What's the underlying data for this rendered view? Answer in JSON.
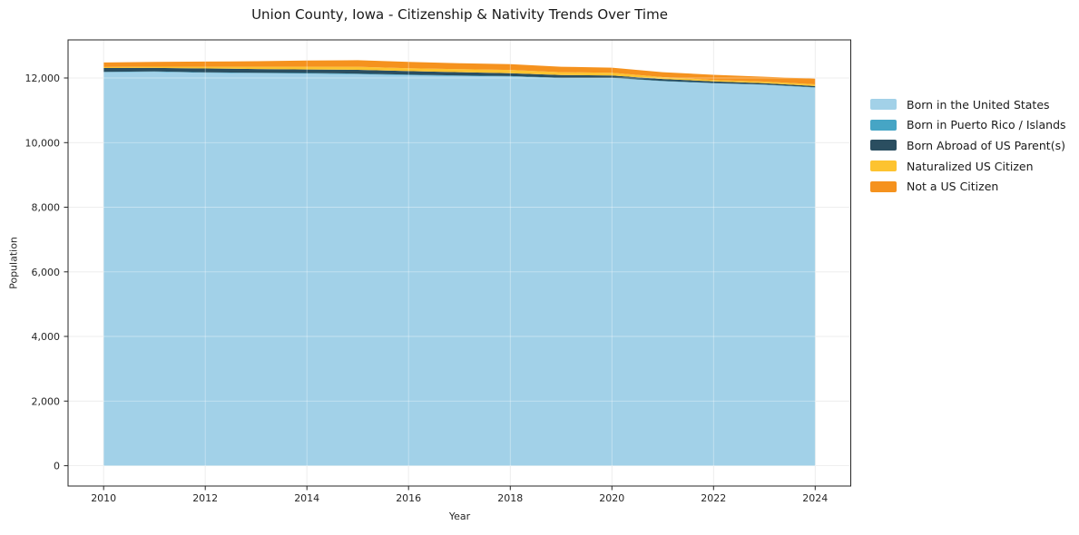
{
  "chart_data": {
    "type": "area",
    "stacked": true,
    "title": "Union County, Iowa - Citizenship & Nativity Trends Over Time",
    "xlabel": "Year",
    "ylabel": "Population",
    "x": [
      2010,
      2011,
      2012,
      2013,
      2014,
      2015,
      2016,
      2017,
      2018,
      2019,
      2020,
      2021,
      2022,
      2023,
      2024
    ],
    "series": [
      {
        "name": "Born in the United States",
        "color": "#a2d1e8",
        "values": [
          12180,
          12190,
          12160,
          12150,
          12140,
          12115,
          12085,
          12060,
          12045,
          11995,
          12000,
          11900,
          11835,
          11790,
          11700
        ]
      },
      {
        "name": "Born in Puerto Rico / Islands",
        "color": "#46a5c5",
        "values": [
          10,
          12,
          15,
          15,
          15,
          20,
          20,
          20,
          15,
          15,
          10,
          10,
          10,
          10,
          15
        ]
      },
      {
        "name": "Born Abroad of US Parent(s)",
        "color": "#2a4e60",
        "values": [
          120,
          110,
          120,
          115,
          110,
          120,
          110,
          100,
          90,
          80,
          70,
          60,
          50,
          40,
          35
        ]
      },
      {
        "name": "Naturalized US Citizen",
        "color": "#fdc330",
        "values": [
          30,
          40,
          55,
          70,
          85,
          95,
          90,
          95,
          100,
          90,
          80,
          60,
          45,
          50,
          55
        ]
      },
      {
        "name": "Not a US Citizen",
        "color": "#f5921e",
        "values": [
          140,
          150,
          160,
          170,
          190,
          200,
          195,
          185,
          180,
          170,
          160,
          150,
          160,
          150,
          175
        ]
      }
    ],
    "xticks": [
      2010,
      2012,
      2014,
      2016,
      2018,
      2020,
      2022,
      2024
    ],
    "yticks": [
      0,
      2000,
      4000,
      6000,
      8000,
      10000,
      12000
    ],
    "ytick_labels": [
      "0",
      "2,000",
      "4,000",
      "6,000",
      "8,000",
      "10,000",
      "12,000"
    ],
    "xlim": [
      2009.3,
      2024.7
    ],
    "ylim": [
      -630,
      13180
    ],
    "grid": true,
    "legend_position": "right",
    "background": "#ffffff",
    "grid_color": "#e4e4e4",
    "spine_color": "#262626"
  }
}
